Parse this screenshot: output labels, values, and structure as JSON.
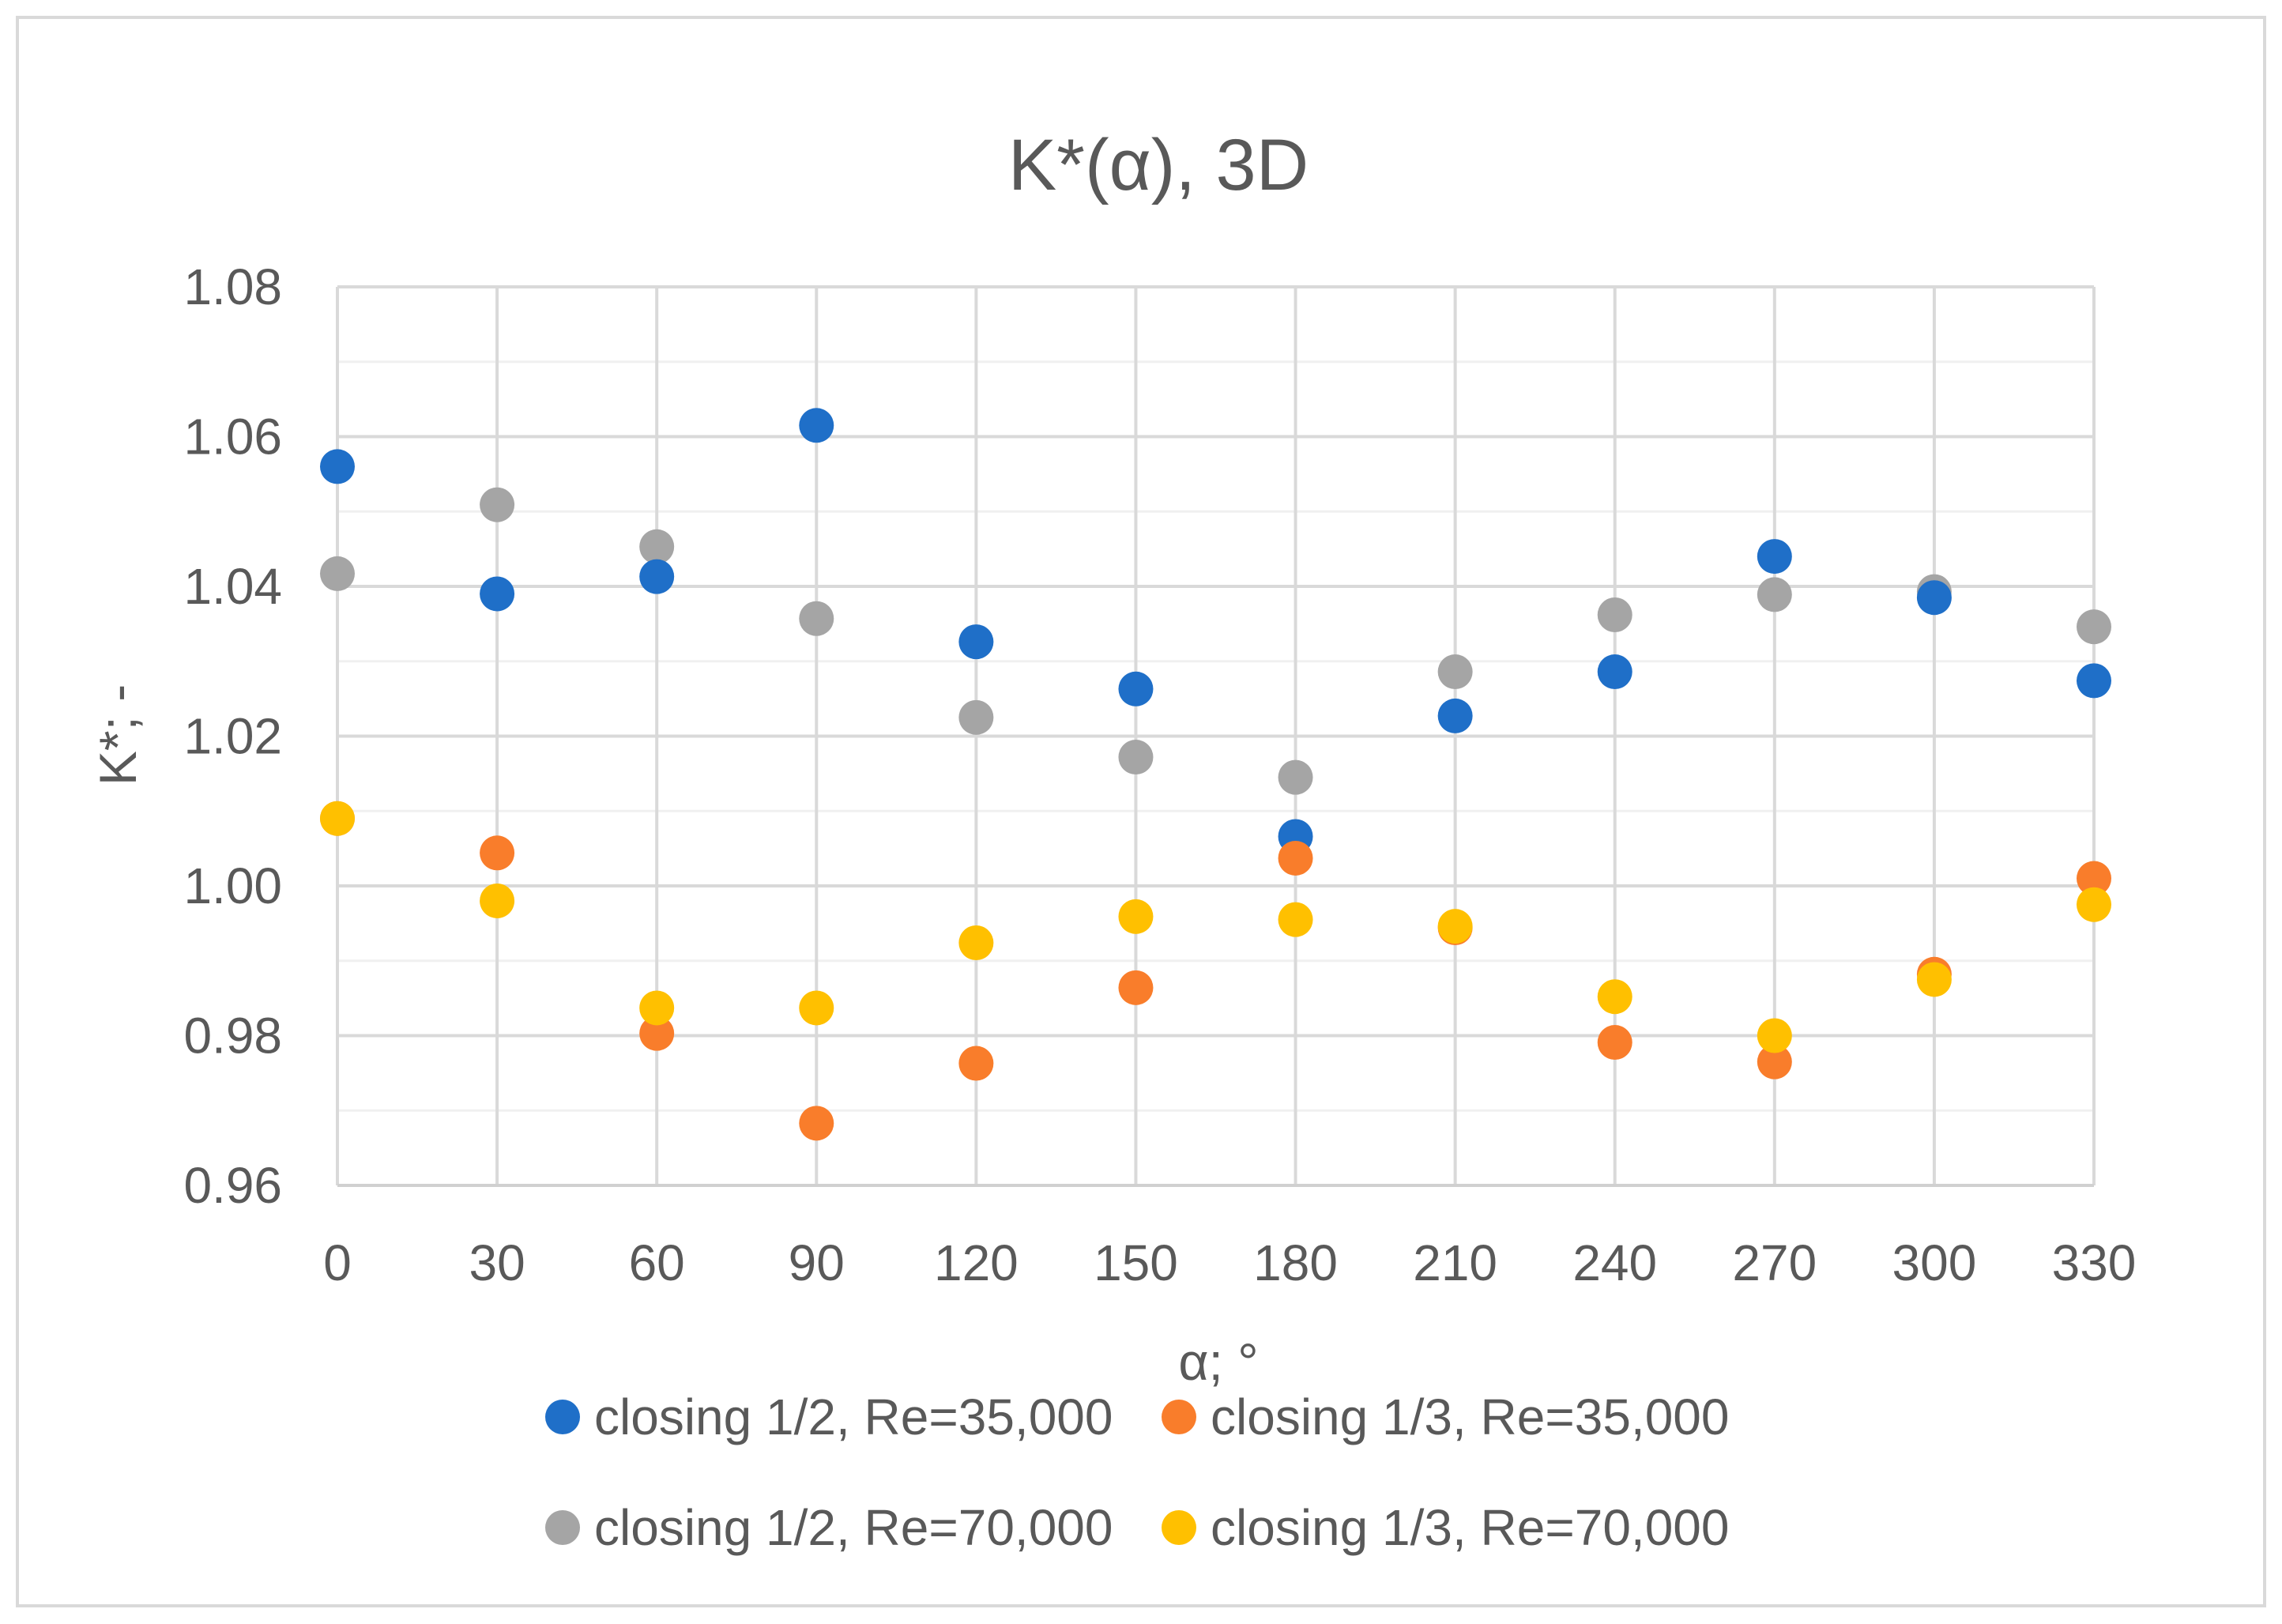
{
  "chart_data": {
    "type": "scatter",
    "title": "K*(α), 3D",
    "xlabel": "α; °",
    "ylabel": "K*; -",
    "x": [
      0,
      30,
      60,
      90,
      120,
      150,
      180,
      210,
      240,
      270,
      300,
      330
    ],
    "x_tick_labels": [
      "0",
      "30",
      "60",
      "90",
      "120",
      "150",
      "180",
      "210",
      "240",
      "270",
      "300",
      "330"
    ],
    "y_tick_labels": [
      "0.96",
      "0.98",
      "1.00",
      "1.02",
      "1.04",
      "1.06",
      "1.08"
    ],
    "y_ticks": [
      0.96,
      0.98,
      1.0,
      1.02,
      1.04,
      1.06,
      1.08
    ],
    "ylim": [
      0.96,
      1.08
    ],
    "grid": true,
    "legend_position": "bottom",
    "series": [
      {
        "name": "closing 1/2, Re=35,000",
        "color": "#1f6fc8",
        "values": [
          1.056,
          1.039,
          1.0413,
          1.0615,
          1.0326,
          1.0263,
          1.0066,
          1.0227,
          1.0286,
          1.044,
          1.0385,
          1.0274
        ]
      },
      {
        "name": "closing 1/3, Re=35,000",
        "color": "#f97d2b",
        "values": [
          1.009,
          1.0044,
          0.9803,
          0.9683,
          0.9763,
          0.9864,
          1.0037,
          0.9944,
          0.9791,
          0.9765,
          0.9882,
          1.001
        ]
      },
      {
        "name": "closing 1/2, Re=70,000",
        "color": "#a5a5a5",
        "values": [
          1.0417,
          1.0509,
          1.0453,
          1.0357,
          1.0225,
          1.0172,
          1.0145,
          1.0286,
          1.0362,
          1.0389,
          1.0393,
          1.0346
        ]
      },
      {
        "name": "closing 1/3, Re=70,000",
        "color": "#ffc000",
        "values": [
          1.009,
          0.998,
          0.9837,
          0.9837,
          0.9924,
          0.9959,
          0.9955,
          0.9946,
          0.9852,
          0.98,
          0.9875,
          0.9975
        ]
      }
    ]
  }
}
